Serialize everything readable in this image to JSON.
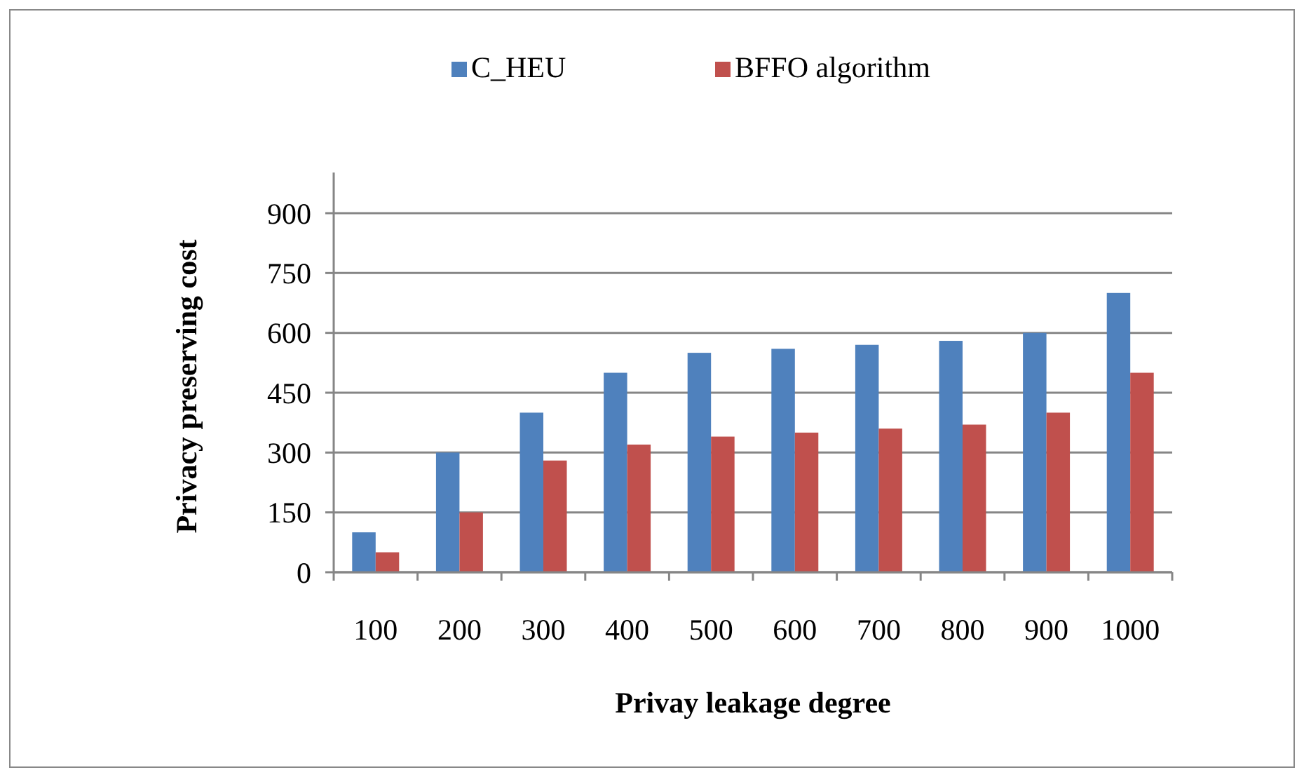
{
  "chart_data": {
    "type": "bar",
    "xlabel": "Privay leakage degree",
    "ylabel": "Privacy preserving cost",
    "categories": [
      "100",
      "200",
      "300",
      "400",
      "500",
      "600",
      "700",
      "800",
      "900",
      "1000"
    ],
    "series": [
      {
        "name": "C_HEU",
        "color": "#4f81bd",
        "values": [
          100,
          300,
          400,
          500,
          550,
          560,
          570,
          580,
          600,
          700
        ]
      },
      {
        "name": "BFFO algorithm",
        "color": "#c0504d",
        "values": [
          50,
          150,
          280,
          320,
          340,
          350,
          360,
          370,
          400,
          500
        ]
      }
    ],
    "ylim": [
      0,
      900
    ],
    "yticks": [
      0,
      150,
      300,
      450,
      600,
      750,
      900
    ],
    "grid": "y",
    "legend": "top"
  }
}
